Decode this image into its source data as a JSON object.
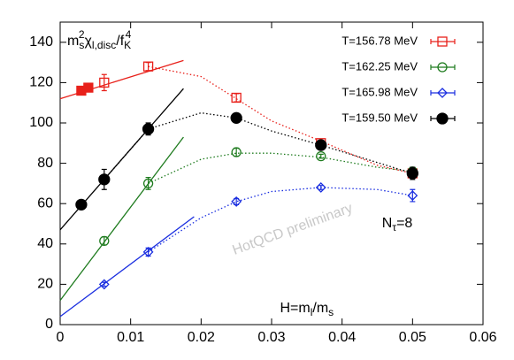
{
  "chart_data": {
    "type": "scatter",
    "xlim": [
      0,
      0.06
    ],
    "ylim": [
      0,
      150
    ],
    "xticks": [
      0,
      0.01,
      0.02,
      0.03,
      0.04,
      0.05,
      0.06
    ],
    "yticks": [
      0,
      20,
      40,
      60,
      80,
      100,
      120,
      140
    ],
    "ylabel": [
      {
        "text": "m"
      },
      {
        "text": "s",
        "pos": "sub"
      },
      {
        "text": "2",
        "pos": "sup"
      },
      {
        "text": "χ"
      },
      {
        "text": "l,disc",
        "pos": "sub"
      },
      {
        "text": "/f"
      },
      {
        "text": "K",
        "pos": "sub"
      },
      {
        "text": "4",
        "pos": "sup"
      }
    ],
    "annotations": [
      {
        "parts": [
          {
            "text": "HotQCD preliminary"
          }
        ],
        "x": 0.033,
        "y": 47,
        "rotate": -20,
        "color": "#c8c8c8"
      },
      {
        "parts": [
          {
            "text": "N"
          },
          {
            "text": "τ",
            "pos": "sub"
          },
          {
            "text": "=8"
          }
        ],
        "x": 0.05,
        "y": 50,
        "align": "end"
      },
      {
        "parts": [
          {
            "text": "H=m"
          },
          {
            "text": "l",
            "pos": "sub"
          },
          {
            "text": "/m"
          },
          {
            "text": "s",
            "pos": "sub"
          }
        ],
        "x": 0.035,
        "y": 8,
        "align": "middle"
      }
    ],
    "series": [
      {
        "name": "T=156.78 MeV",
        "color": "#e8201a",
        "marker": "square",
        "x": [
          0.003,
          0.004,
          0.00625,
          0.0125,
          0.025,
          0.037,
          0.05
        ],
        "values": [
          116,
          117.5,
          120,
          128,
          112.5,
          90,
          75
        ],
        "errors": [
          1,
          1,
          4,
          2,
          2,
          1,
          2
        ],
        "filled": [
          true,
          true,
          false,
          false,
          false,
          false,
          false
        ],
        "fit": {
          "x": [
            0,
            0.0175
          ],
          "y": [
            112,
            131
          ]
        },
        "curve": {
          "x": [
            0.0125,
            0.02,
            0.025,
            0.03,
            0.037,
            0.045,
            0.05
          ],
          "y": [
            128,
            123,
            112,
            101,
            91,
            79,
            75
          ]
        }
      },
      {
        "name": "T=162.25 MeV",
        "color": "#1e7b1e",
        "marker": "circle",
        "x": [
          0.00625,
          0.0125,
          0.025,
          0.037,
          0.05
        ],
        "values": [
          41.5,
          70,
          85.5,
          83.5,
          76
        ],
        "errors": [
          2,
          3,
          2,
          1,
          2
        ],
        "filled": [
          false,
          false,
          false,
          false,
          false
        ],
        "fit": {
          "x": [
            0,
            0.0175
          ],
          "y": [
            12,
            93
          ]
        },
        "curve": {
          "x": [
            0.0125,
            0.02,
            0.025,
            0.03,
            0.037,
            0.045,
            0.05
          ],
          "y": [
            70,
            82,
            85,
            85,
            83,
            78,
            76
          ]
        }
      },
      {
        "name": "T=165.98 MeV",
        "color": "#1a2ee0",
        "marker": "diamond",
        "x": [
          0.00625,
          0.0125,
          0.025,
          0.037,
          0.05
        ],
        "values": [
          20,
          36,
          61,
          68,
          64
        ],
        "errors": [
          1,
          2,
          1.5,
          1,
          3
        ],
        "filled": [
          false,
          false,
          false,
          false,
          false
        ],
        "fit": {
          "x": [
            0,
            0.019
          ],
          "y": [
            4,
            53.5
          ]
        },
        "curve": {
          "x": [
            0.0125,
            0.02,
            0.025,
            0.03,
            0.037,
            0.045,
            0.05
          ],
          "y": [
            36,
            53,
            61,
            66,
            68,
            67,
            64
          ]
        }
      },
      {
        "name": "T=159.50 MeV",
        "color": "#000000",
        "marker": "circle",
        "x": [
          0.003,
          0.00625,
          0.0125,
          0.025,
          0.037,
          0.05
        ],
        "values": [
          59.5,
          72,
          97,
          102.5,
          89,
          75
        ],
        "errors": [
          1,
          5,
          3,
          1,
          1,
          3
        ],
        "filled": [
          true,
          true,
          true,
          true,
          true,
          true
        ],
        "fit": {
          "x": [
            0,
            0.0175
          ],
          "y": [
            47,
            117
          ]
        },
        "curve": {
          "x": [
            0.00625,
            0.0125,
            0.02,
            0.025,
            0.03,
            0.037,
            0.05
          ],
          "y": [
            72,
            97,
            105,
            102.5,
            96,
            89,
            75
          ]
        }
      }
    ]
  }
}
